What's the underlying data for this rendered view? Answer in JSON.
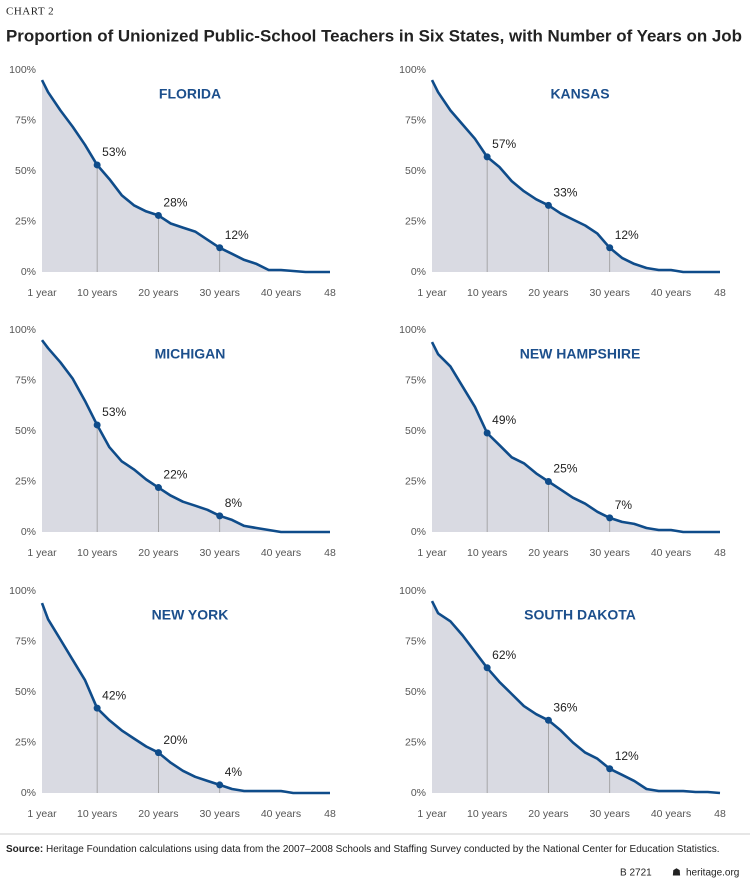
{
  "label": "CHART 2",
  "title": "Proportion of Unionized Public-School Teachers in Six States, with Number of Years on Job",
  "source_label": "Source:",
  "source": "Heritage Foundation calculations using data from the 2007–2008 Schools and Staffing Survey conducted by the National Center for Education Statistics.",
  "report_id": "B 2721",
  "site": "heritage.org",
  "chart_data": [
    {
      "type": "area",
      "title": "FLORIDA",
      "color": "#0f4c8a",
      "fill": "#d9dae2",
      "x": [
        1,
        2,
        4,
        6,
        8,
        10,
        12,
        14,
        16,
        18,
        20,
        22,
        24,
        26,
        28,
        30,
        32,
        34,
        36,
        38,
        40,
        42,
        44,
        46,
        48
      ],
      "values": [
        95,
        89,
        80,
        72,
        63,
        53,
        46,
        38,
        33,
        30,
        28,
        24,
        22,
        20,
        16,
        12,
        9,
        6,
        4,
        1,
        1,
        0.5,
        0,
        0,
        0
      ],
      "markers": {
        "x": [
          10,
          20,
          30
        ],
        "values": [
          53,
          28,
          12
        ],
        "value_labels": [
          "53%",
          "28%",
          "12%"
        ]
      },
      "xlim": [
        1,
        48
      ],
      "ylim": [
        0,
        100
      ],
      "xticks": [
        {
          "value": 1,
          "label": "1 year"
        },
        {
          "value": 10,
          "label": "10 years"
        },
        {
          "value": 20,
          "label": "20 years"
        },
        {
          "value": 30,
          "label": "30 years"
        },
        {
          "value": 40,
          "label": "40 years"
        },
        48
      ],
      "yticks": [
        {
          "value": 0,
          "label": "0%"
        },
        {
          "value": 25,
          "label": "25%"
        },
        {
          "value": 50,
          "label": "50%"
        },
        {
          "value": 75,
          "label": "75%"
        },
        {
          "value": 100,
          "label": "100%"
        }
      ]
    },
    {
      "type": "area",
      "title": "KANSAS",
      "color": "#0f4c8a",
      "fill": "#d9dae2",
      "x": [
        1,
        2,
        4,
        6,
        8,
        10,
        12,
        14,
        16,
        18,
        20,
        22,
        24,
        26,
        28,
        30,
        32,
        34,
        36,
        38,
        40,
        42,
        44,
        46,
        48
      ],
      "values": [
        95,
        89,
        80,
        73,
        66,
        57,
        52,
        45,
        40,
        36,
        33,
        29,
        26,
        23,
        19,
        12,
        7,
        4,
        2,
        1,
        1,
        0,
        0,
        0,
        0
      ],
      "markers": {
        "x": [
          10,
          20,
          30
        ],
        "values": [
          57,
          33,
          12
        ],
        "value_labels": [
          "57%",
          "33%",
          "12%"
        ]
      },
      "xlim": [
        1,
        48
      ],
      "ylim": [
        0,
        100
      ],
      "xticks": [
        {
          "value": 1,
          "label": "1 year"
        },
        {
          "value": 10,
          "label": "10 years"
        },
        {
          "value": 20,
          "label": "20 years"
        },
        {
          "value": 30,
          "label": "30 years"
        },
        {
          "value": 40,
          "label": "40 years"
        },
        48
      ],
      "yticks": [
        {
          "value": 0,
          "label": "0%"
        },
        {
          "value": 25,
          "label": "25%"
        },
        {
          "value": 50,
          "label": "50%"
        },
        {
          "value": 75,
          "label": "75%"
        },
        {
          "value": 100,
          "label": "100%"
        }
      ]
    },
    {
      "type": "area",
      "title": "MICHIGAN",
      "color": "#0f4c8a",
      "fill": "#d9dae2",
      "x": [
        1,
        2,
        4,
        6,
        8,
        10,
        12,
        14,
        16,
        18,
        20,
        22,
        24,
        26,
        28,
        30,
        32,
        34,
        36,
        38,
        40,
        42,
        44,
        46,
        48
      ],
      "values": [
        95,
        91,
        84,
        76,
        65,
        53,
        42,
        35,
        31,
        26,
        22,
        18,
        15,
        13,
        11,
        8,
        6,
        3,
        2,
        1,
        0,
        0,
        0,
        0,
        0
      ],
      "markers": {
        "x": [
          10,
          20,
          30
        ],
        "values": [
          53,
          22,
          8
        ],
        "value_labels": [
          "53%",
          "22%",
          "8%"
        ]
      },
      "xlim": [
        1,
        48
      ],
      "ylim": [
        0,
        100
      ],
      "xticks": [
        {
          "value": 1,
          "label": "1 year"
        },
        {
          "value": 10,
          "label": "10 years"
        },
        {
          "value": 20,
          "label": "20 years"
        },
        {
          "value": 30,
          "label": "30 years"
        },
        {
          "value": 40,
          "label": "40 years"
        },
        48
      ],
      "yticks": [
        {
          "value": 0,
          "label": "0%"
        },
        {
          "value": 25,
          "label": "25%"
        },
        {
          "value": 50,
          "label": "50%"
        },
        {
          "value": 75,
          "label": "75%"
        },
        {
          "value": 100,
          "label": "100%"
        }
      ]
    },
    {
      "type": "area",
      "title": "NEW HAMPSHIRE",
      "color": "#0f4c8a",
      "fill": "#d9dae2",
      "x": [
        1,
        2,
        4,
        6,
        8,
        10,
        12,
        14,
        16,
        18,
        20,
        22,
        24,
        26,
        28,
        30,
        32,
        34,
        36,
        38,
        40,
        42,
        44,
        46,
        48
      ],
      "values": [
        94,
        88,
        82,
        72,
        62,
        49,
        43,
        37,
        34,
        29,
        25,
        21,
        17,
        14,
        10,
        7,
        5,
        4,
        2,
        1,
        1,
        0,
        0,
        0,
        0
      ],
      "markers": {
        "x": [
          10,
          20,
          30
        ],
        "values": [
          49,
          25,
          7
        ],
        "value_labels": [
          "49%",
          "25%",
          "7%"
        ]
      },
      "xlim": [
        1,
        48
      ],
      "ylim": [
        0,
        100
      ],
      "xticks": [
        {
          "value": 1,
          "label": "1 year"
        },
        {
          "value": 10,
          "label": "10 years"
        },
        {
          "value": 20,
          "label": "20 years"
        },
        {
          "value": 30,
          "label": "30 years"
        },
        {
          "value": 40,
          "label": "40 years"
        },
        48
      ],
      "yticks": [
        {
          "value": 0,
          "label": "0%"
        },
        {
          "value": 25,
          "label": "25%"
        },
        {
          "value": 50,
          "label": "50%"
        },
        {
          "value": 75,
          "label": "75%"
        },
        {
          "value": 100,
          "label": "100%"
        }
      ]
    },
    {
      "type": "area",
      "title": "NEW YORK",
      "color": "#0f4c8a",
      "fill": "#d9dae2",
      "x": [
        1,
        2,
        4,
        6,
        8,
        10,
        12,
        14,
        16,
        18,
        20,
        22,
        24,
        26,
        28,
        30,
        32,
        34,
        36,
        38,
        40,
        42,
        44,
        46,
        48
      ],
      "values": [
        94,
        86,
        76,
        66,
        56,
        42,
        36,
        31,
        27,
        23,
        20,
        15,
        11,
        8,
        6,
        4,
        2,
        1,
        1,
        1,
        1,
        0,
        0,
        0,
        0
      ],
      "markers": {
        "x": [
          10,
          20,
          30
        ],
        "values": [
          42,
          20,
          4
        ],
        "value_labels": [
          "42%",
          "20%",
          "4%"
        ]
      },
      "xlim": [
        1,
        48
      ],
      "ylim": [
        0,
        100
      ],
      "xticks": [
        {
          "value": 1,
          "label": "1 year"
        },
        {
          "value": 10,
          "label": "10 years"
        },
        {
          "value": 20,
          "label": "20 years"
        },
        {
          "value": 30,
          "label": "30 years"
        },
        {
          "value": 40,
          "label": "40 years"
        },
        48
      ],
      "yticks": [
        {
          "value": 0,
          "label": "0%"
        },
        {
          "value": 25,
          "label": "25%"
        },
        {
          "value": 50,
          "label": "50%"
        },
        {
          "value": 75,
          "label": "75%"
        },
        {
          "value": 100,
          "label": "100%"
        }
      ]
    },
    {
      "type": "area",
      "title": "SOUTH DAKOTA",
      "color": "#0f4c8a",
      "fill": "#d9dae2",
      "x": [
        1,
        2,
        4,
        6,
        8,
        10,
        12,
        14,
        16,
        18,
        20,
        22,
        24,
        26,
        28,
        30,
        32,
        34,
        36,
        38,
        40,
        42,
        44,
        46,
        48
      ],
      "values": [
        95,
        89,
        85,
        78,
        70,
        62,
        55,
        49,
        43,
        39,
        36,
        31,
        25,
        20,
        17,
        12,
        9,
        6,
        2,
        1,
        1,
        1,
        0.5,
        0.5,
        0
      ],
      "markers": {
        "x": [
          10,
          20,
          30
        ],
        "values": [
          62,
          36,
          12
        ],
        "value_labels": [
          "62%",
          "36%",
          "12%"
        ]
      },
      "xlim": [
        1,
        48
      ],
      "ylim": [
        0,
        100
      ],
      "xticks": [
        {
          "value": 1,
          "label": "1 year"
        },
        {
          "value": 10,
          "label": "10 years"
        },
        {
          "value": 20,
          "label": "20 years"
        },
        {
          "value": 30,
          "label": "30 years"
        },
        {
          "value": 40,
          "label": "40 years"
        },
        48
      ],
      "yticks": [
        {
          "value": 0,
          "label": "0%"
        },
        {
          "value": 25,
          "label": "25%"
        },
        {
          "value": 50,
          "label": "50%"
        },
        {
          "value": 75,
          "label": "75%"
        },
        {
          "value": 100,
          "label": "100%"
        }
      ]
    }
  ]
}
